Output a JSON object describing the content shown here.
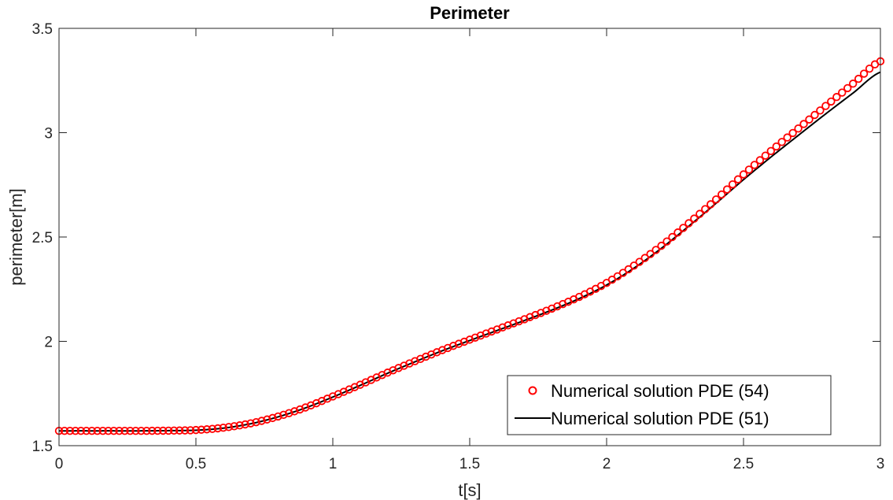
{
  "chart_data": {
    "type": "line",
    "title": "Perimeter",
    "xlabel": "t[s]",
    "ylabel": "perimeter[m]",
    "xlim": [
      0,
      3
    ],
    "ylim": [
      1.5,
      3.5
    ],
    "xticks": [
      "0",
      "0.5",
      "1",
      "1.5",
      "2",
      "2.5",
      "3"
    ],
    "yticks": [
      "1.5",
      "2",
      "2.5",
      "3",
      "3.5"
    ],
    "grid": false,
    "box": true,
    "legend_position": "bottom-right",
    "x_step": 0.02,
    "series": [
      {
        "name": "Numerical solution PDE (54)",
        "style": "markers",
        "marker": "circle",
        "color": "#ff0000",
        "x": [
          0,
          0.1,
          0.2,
          0.3,
          0.4,
          0.5,
          0.6,
          0.7,
          0.8,
          0.9,
          1.0,
          1.1,
          1.2,
          1.3,
          1.4,
          1.5,
          1.6,
          1.7,
          1.8,
          1.9,
          2.0,
          2.1,
          2.2,
          2.3,
          2.4,
          2.5,
          2.6,
          2.7,
          2.8,
          2.9,
          3.0
        ],
        "y": [
          1.571,
          1.571,
          1.571,
          1.571,
          1.572,
          1.575,
          1.586,
          1.607,
          1.64,
          1.683,
          1.736,
          1.792,
          1.85,
          1.905,
          1.958,
          2.008,
          2.057,
          2.106,
          2.157,
          2.213,
          2.28,
          2.363,
          2.458,
          2.566,
          2.68,
          2.8,
          2.912,
          3.02,
          3.128,
          3.235,
          3.342
        ]
      },
      {
        "name": "Numerical solution PDE (51)",
        "style": "line",
        "color": "#000000",
        "x": [
          0,
          0.1,
          0.2,
          0.3,
          0.4,
          0.5,
          0.6,
          0.7,
          0.8,
          0.9,
          1.0,
          1.1,
          1.2,
          1.3,
          1.4,
          1.5,
          1.6,
          1.7,
          1.8,
          1.9,
          2.0,
          2.1,
          2.2,
          2.3,
          2.4,
          2.5,
          2.6,
          2.7,
          2.8,
          2.9,
          3.0
        ],
        "y": [
          1.571,
          1.571,
          1.571,
          1.571,
          1.572,
          1.574,
          1.584,
          1.605,
          1.638,
          1.681,
          1.733,
          1.789,
          1.847,
          1.902,
          1.955,
          2.004,
          2.052,
          2.1,
          2.15,
          2.205,
          2.27,
          2.351,
          2.446,
          2.552,
          2.662,
          2.775,
          2.883,
          2.987,
          3.09,
          3.19,
          3.29
        ]
      }
    ]
  }
}
